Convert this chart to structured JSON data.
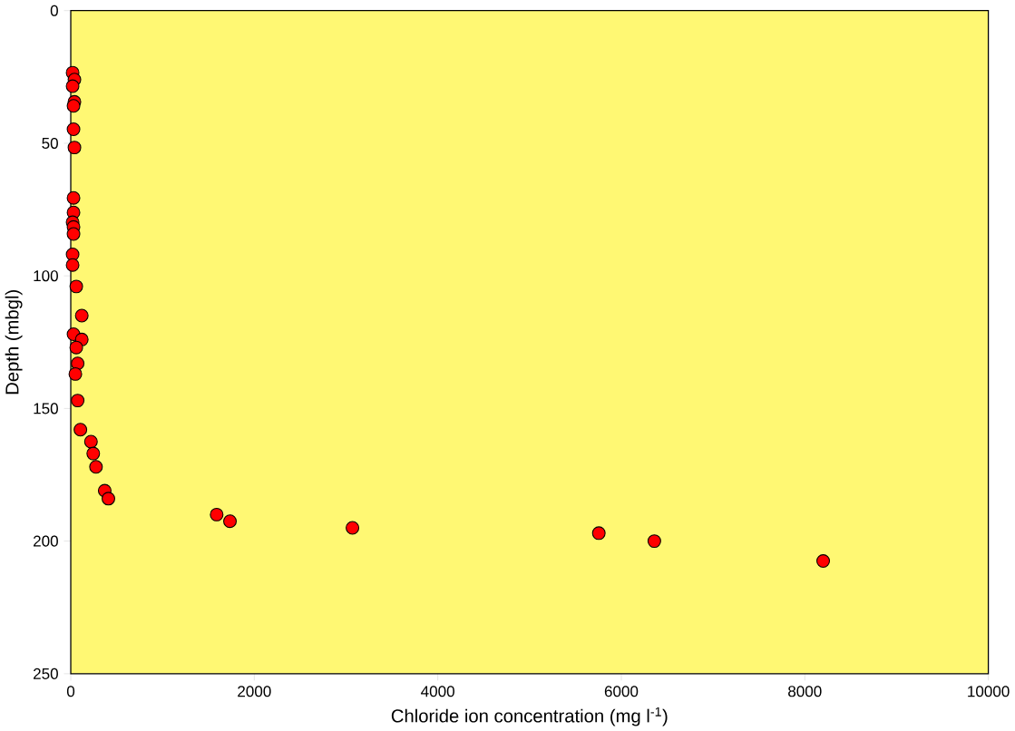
{
  "chart_data": {
    "type": "scatter",
    "xlabel": "Chloride ion concentration (mg l$^{-1}$)",
    "ylabel": "Depth (mbgl)",
    "x": [
      20,
      40,
      20,
      40,
      30,
      30,
      40,
      30,
      30,
      20,
      30,
      30,
      20,
      20,
      60,
      120,
      30,
      120,
      60,
      75,
      50,
      75,
      105,
      220,
      245,
      275,
      370,
      410,
      1590,
      1735,
      3070,
      5755,
      6360,
      8200
    ],
    "series": [
      {
        "color": "#ff0000",
        "values": [
          23.4,
          26,
          28.5,
          34.4,
          35.9,
          44.7,
          51.6,
          70.6,
          76.1,
          79.8,
          81.6,
          84.2,
          91.9,
          95.9,
          104,
          115,
          122,
          124,
          127,
          133,
          137,
          147,
          158,
          162.5,
          167,
          172,
          181,
          184,
          190,
          192.5,
          195,
          197,
          200,
          207.5
        ]
      }
    ],
    "xlim": [
      0,
      10000
    ],
    "xticks": [
      0,
      2000,
      4000,
      6000,
      8000,
      10000
    ],
    "ylim": [
      250,
      0
    ],
    "yticks": [
      0,
      50,
      100,
      150,
      200,
      250
    ],
    "marker": "circle"
  }
}
